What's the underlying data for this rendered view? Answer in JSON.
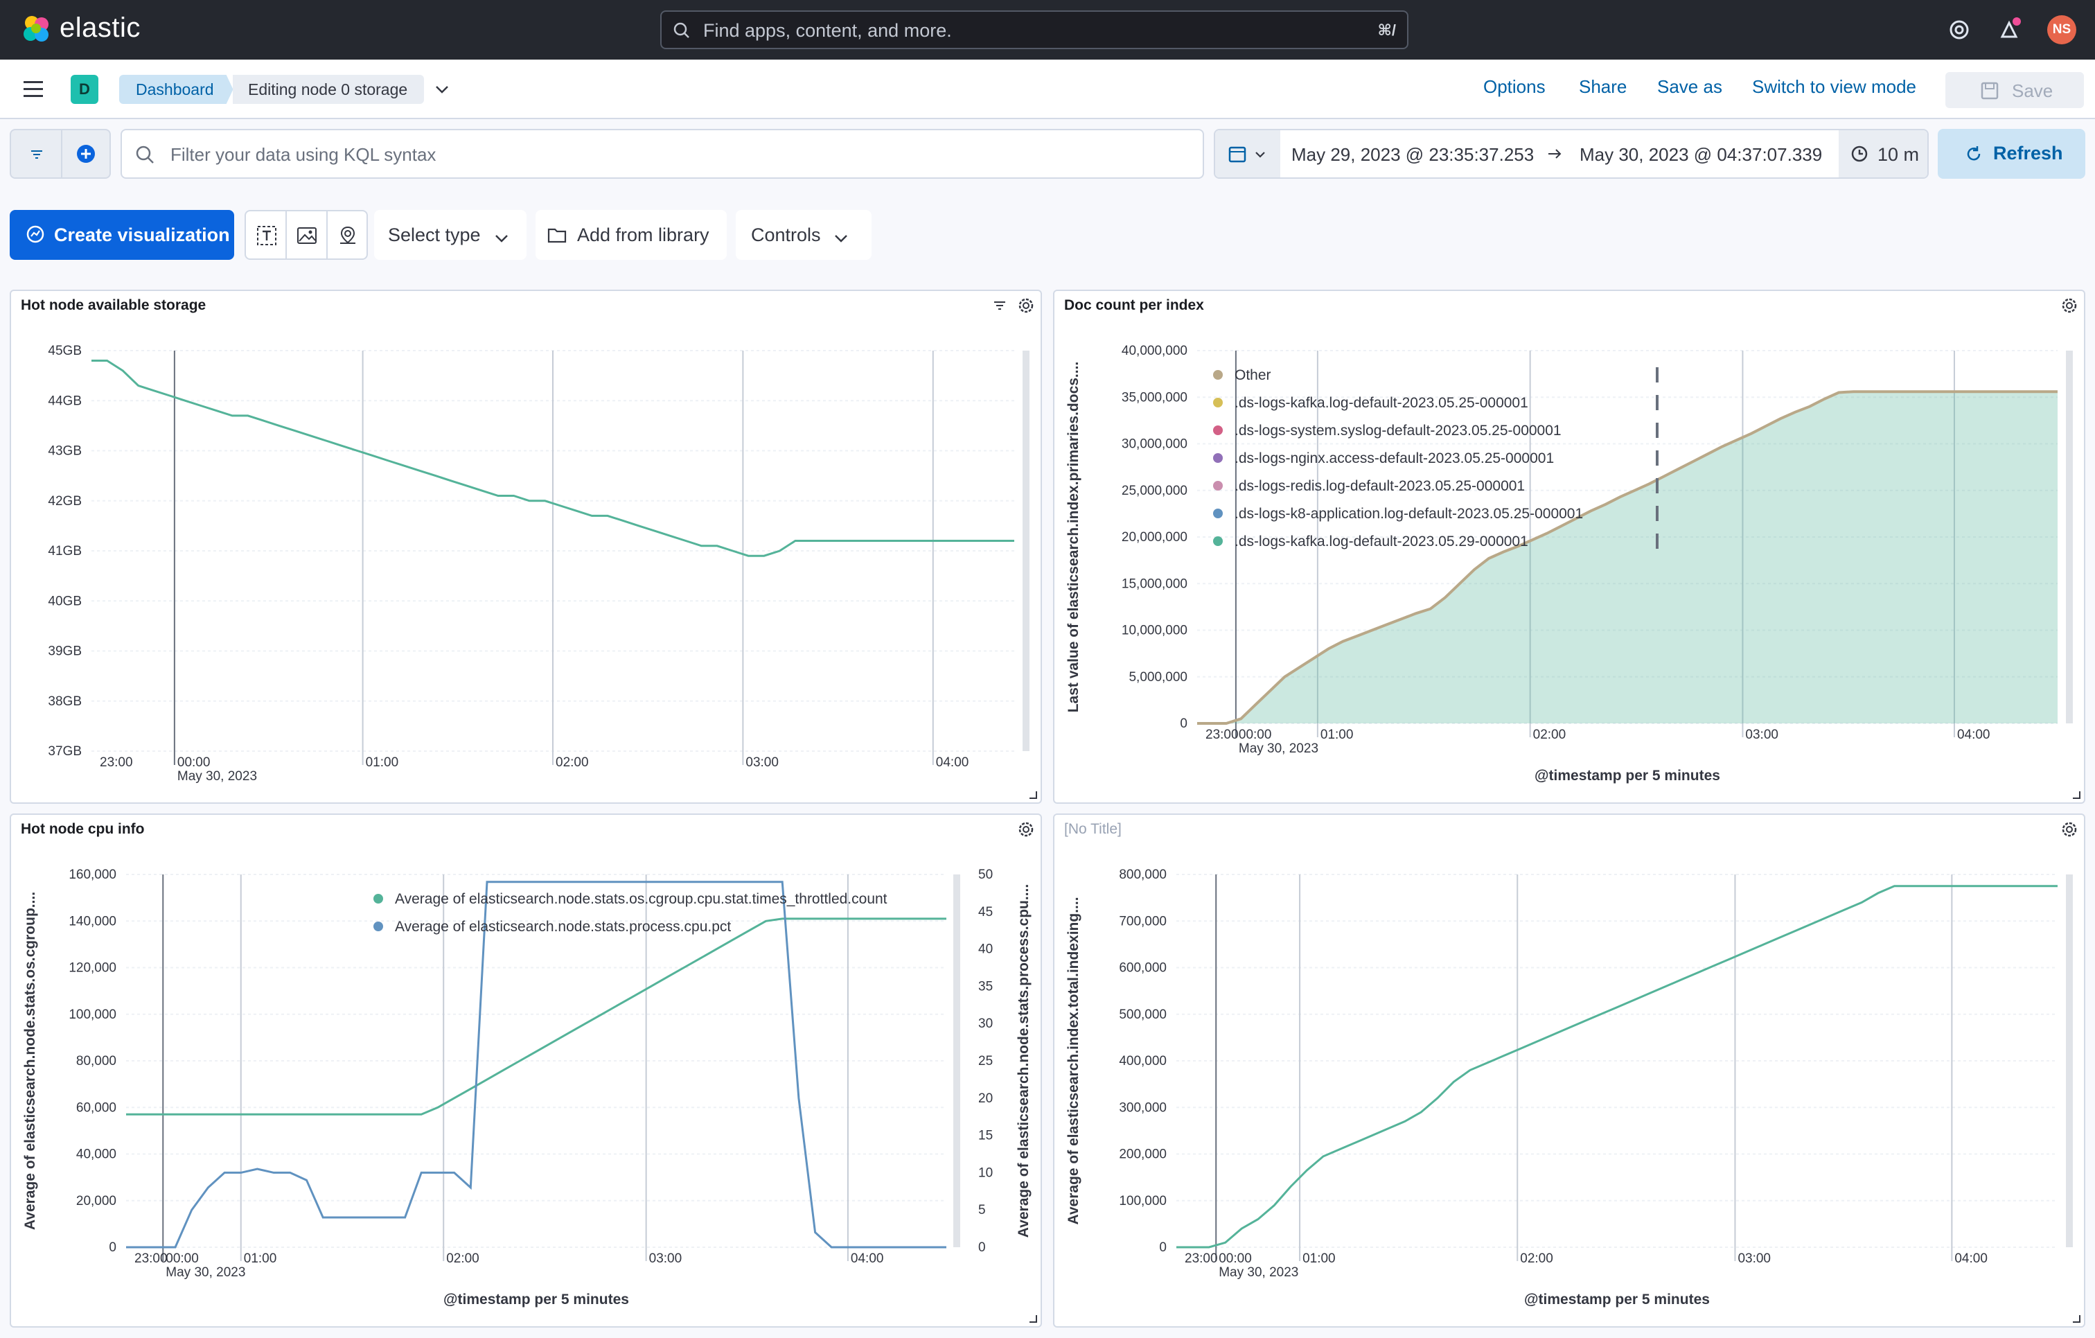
{
  "header": {
    "logo_text": "elastic",
    "search_placeholder": "Find apps, content, and more.",
    "search_shortcut": "⌘/",
    "avatar_initials": "NS",
    "icons": [
      "help-icon",
      "news-icon",
      "user-avatar"
    ]
  },
  "appbar": {
    "space_letter": "D",
    "breadcrumbs": [
      "Dashboard",
      "Editing node 0 storage"
    ],
    "links": {
      "options": "Options",
      "share": "Share",
      "save_as": "Save as",
      "switch_mode": "Switch to view mode"
    },
    "save_label": "Save"
  },
  "query": {
    "kql_placeholder": "Filter your data using KQL syntax",
    "start": "May 29, 2023 @ 23:35:37.253",
    "end": "May 30, 2023 @ 04:37:07.339",
    "refresh_interval": "10 m",
    "refresh_label": "Refresh"
  },
  "toolbar": {
    "create_label": "Create visualization",
    "select_type": "Select type",
    "add_library": "Add from library",
    "controls": "Controls"
  },
  "colors": {
    "green": "#54b399",
    "blue": "#6092c0",
    "brand": "#0b64dd",
    "tan": "#b9a888"
  },
  "chart_data": [
    {
      "id": "storage",
      "title": "Hot node available storage",
      "type": "line",
      "y_ticks": [
        "45GB",
        "44GB",
        "43GB",
        "42GB",
        "41GB",
        "40GB",
        "39GB",
        "38GB",
        "37GB"
      ],
      "ylim": [
        37,
        45
      ],
      "x_ticks": [
        "23:00",
        "00:00",
        "01:00",
        "02:00",
        "03:00",
        "04:00"
      ],
      "x_subtitle": "May 30, 2023",
      "series": [
        {
          "values": [
            44.8,
            44.8,
            44.6,
            44.3,
            44.2,
            44.1,
            44.0,
            43.9,
            43.8,
            43.7,
            43.7,
            43.6,
            43.5,
            43.4,
            43.3,
            43.2,
            43.1,
            43.0,
            42.9,
            42.8,
            42.7,
            42.6,
            42.5,
            42.4,
            42.3,
            42.2,
            42.1,
            42.1,
            42.0,
            42.0,
            41.9,
            41.8,
            41.7,
            41.7,
            41.6,
            41.5,
            41.4,
            41.3,
            41.2,
            41.1,
            41.1,
            41.0,
            40.9,
            40.9,
            41.0,
            41.2,
            41.2,
            41.2,
            41.2,
            41.2,
            41.2,
            41.2,
            41.2,
            41.2,
            41.2,
            41.2,
            41.2,
            41.2,
            41.2,
            41.2
          ]
        }
      ]
    },
    {
      "id": "doccount",
      "title": "Doc count per index",
      "type": "area",
      "y_ticks": [
        "40,000,000",
        "35,000,000",
        "30,000,000",
        "25,000,000",
        "20,000,000",
        "15,000,000",
        "10,000,000",
        "5,000,000",
        "0"
      ],
      "ylim": [
        0,
        40000000
      ],
      "x_ticks": [
        "23:00",
        "00:00",
        "01:00",
        "02:00",
        "03:00",
        "04:00"
      ],
      "x_subtitle": "May 30, 2023",
      "ylabel": "Last value of elasticsearch.index.primaries.docs....",
      "xlabel": "@timestamp per 5 minutes",
      "legend": [
        {
          "name": "Other",
          "color": "#b9a888"
        },
        {
          "name": ".ds-logs-kafka.log-default-2023.05.25-000001",
          "color": "#d6bf57"
        },
        {
          "name": ".ds-logs-system.syslog-default-2023.05.25-000001",
          "color": "#d36086"
        },
        {
          "name": ".ds-logs-nginx.access-default-2023.05.25-000001",
          "color": "#9170b8"
        },
        {
          "name": ".ds-logs-redis.log-default-2023.05.25-000001",
          "color": "#ca8eae"
        },
        {
          "name": ".ds-logs-k8-application.log-default-2023.05.25-000001",
          "color": "#6092c0"
        },
        {
          "name": ".ds-logs-kafka.log-default-2023.05.29-000001",
          "color": "#54b399"
        }
      ],
      "series": [
        {
          "values": [
            0,
            0,
            0,
            500000,
            2000000,
            3500000,
            5000000,
            6000000,
            7000000,
            8000000,
            8800000,
            9400000,
            10000000,
            10600000,
            11200000,
            11800000,
            12300000,
            13500000,
            15000000,
            16500000,
            17700000,
            18400000,
            19000000,
            19700000,
            20400000,
            21200000,
            22000000,
            22800000,
            23500000,
            24300000,
            25000000,
            25700000,
            26500000,
            27300000,
            28100000,
            28900000,
            29700000,
            30400000,
            31100000,
            31900000,
            32700000,
            33400000,
            34000000,
            34800000,
            35500000,
            35600000,
            35600000,
            35600000,
            35600000,
            35600000,
            35600000,
            35600000,
            35600000,
            35600000,
            35600000,
            35600000,
            35600000,
            35600000,
            35600000,
            35600000
          ]
        }
      ]
    },
    {
      "id": "cpu",
      "title": "Hot node cpu info",
      "type": "line",
      "y_ticks": [
        "160,000",
        "140,000",
        "120,000",
        "100,000",
        "80,000",
        "60,000",
        "40,000",
        "20,000",
        "0"
      ],
      "ylim": [
        0,
        160000
      ],
      "y2_ticks": [
        "50",
        "45",
        "40",
        "35",
        "30",
        "25",
        "20",
        "15",
        "10",
        "5",
        "0"
      ],
      "y2lim": [
        0,
        50
      ],
      "x_ticks": [
        "23:00",
        "00:00",
        "01:00",
        "02:00",
        "03:00",
        "04:00"
      ],
      "x_subtitle": "May 30, 2023",
      "ylabel": "Average of elasticsearch.node.stats.os.cgroup....",
      "y2label": "Average of elasticsearch.node.stats.process.cpu....",
      "xlabel": "@timestamp per 5 minutes",
      "legend": [
        {
          "name": "Average of elasticsearch.node.stats.os.cgroup.cpu.stat.times_throttled.count",
          "color": "#54b399"
        },
        {
          "name": "Average of elasticsearch.node.stats.process.cpu.pct",
          "color": "#6092c0"
        }
      ],
      "series": [
        {
          "axis": "left",
          "values": [
            57000,
            57000,
            57000,
            57000,
            57000,
            57000,
            57000,
            57000,
            57000,
            57000,
            57000,
            57000,
            57000,
            57000,
            57000,
            57000,
            57000,
            57000,
            57000,
            60000,
            64000,
            68000,
            72000,
            76000,
            80000,
            84000,
            88000,
            92000,
            96000,
            100000,
            104000,
            108000,
            112000,
            116000,
            120000,
            124000,
            128000,
            132000,
            136000,
            140000,
            141000,
            141000,
            141000,
            141000,
            141000,
            141000,
            141000,
            141000,
            141000,
            141000,
            141000
          ]
        },
        {
          "axis": "right",
          "values": [
            0,
            0,
            0,
            0,
            5,
            8,
            10,
            10,
            10.5,
            10,
            10,
            9,
            4,
            4,
            4,
            4,
            4,
            4,
            10,
            10,
            10,
            8,
            49,
            49,
            49,
            49,
            49,
            49,
            49,
            49,
            49,
            49,
            49,
            49,
            49,
            49,
            49,
            49,
            49,
            49,
            49,
            20,
            2,
            0,
            0,
            0,
            0,
            0,
            0,
            0,
            0
          ]
        }
      ]
    },
    {
      "id": "indexing",
      "title": "[No Title]",
      "type": "line",
      "y_ticks": [
        "800,000",
        "700,000",
        "600,000",
        "500,000",
        "400,000",
        "300,000",
        "200,000",
        "100,000",
        "0"
      ],
      "ylim": [
        0,
        800000
      ],
      "x_ticks": [
        "23:00",
        "00:00",
        "01:00",
        "02:00",
        "03:00",
        "04:00"
      ],
      "x_subtitle": "May 30, 2023",
      "ylabel": "Average of elasticsearch.index.total.indexing....",
      "xlabel": "@timestamp per 5 minutes",
      "series": [
        {
          "values": [
            0,
            0,
            0,
            10000,
            40000,
            60000,
            90000,
            130000,
            165000,
            195000,
            210000,
            225000,
            240000,
            255000,
            270000,
            290000,
            320000,
            355000,
            380000,
            395000,
            410000,
            425000,
            440000,
            455000,
            470000,
            485000,
            500000,
            515000,
            530000,
            545000,
            560000,
            575000,
            590000,
            605000,
            620000,
            635000,
            650000,
            665000,
            680000,
            695000,
            710000,
            725000,
            740000,
            760000,
            775000,
            775000,
            775000,
            775000,
            775000,
            775000,
            775000,
            775000,
            775000,
            775000,
            775000
          ]
        }
      ]
    }
  ]
}
